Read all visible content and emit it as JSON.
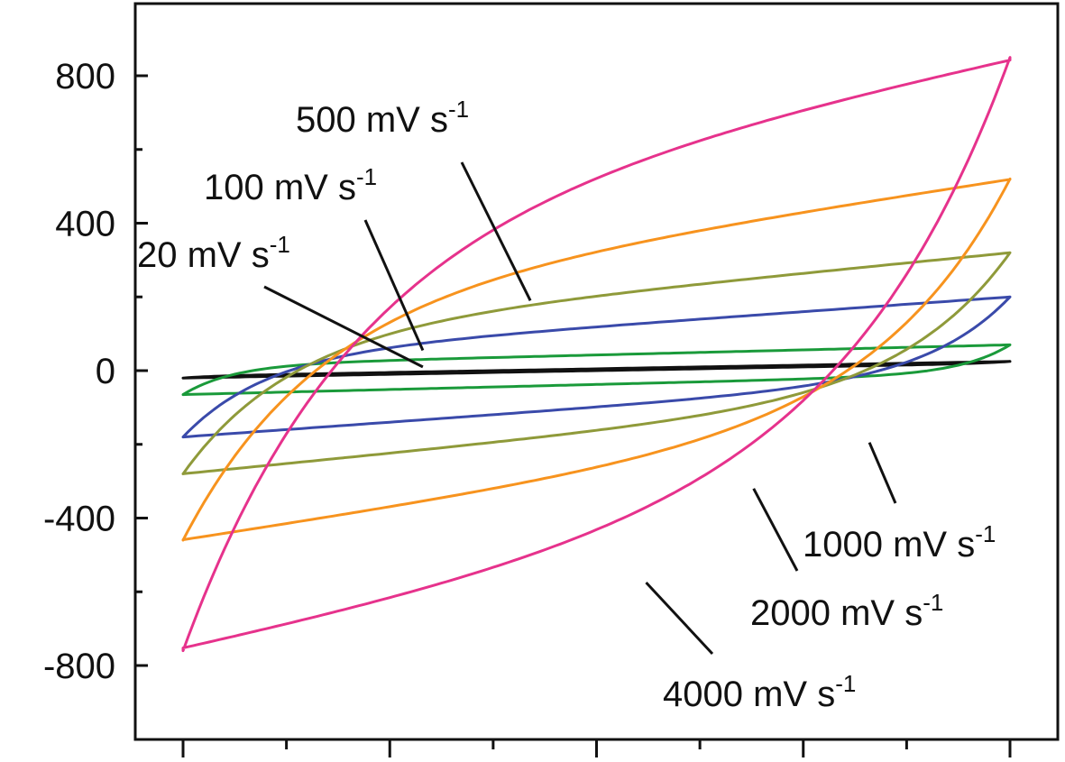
{
  "chart_data": {
    "type": "line",
    "title": "",
    "xlabel": "",
    "ylabel": "",
    "xlim": [
      0,
      1.0
    ],
    "ylim": [
      -1000,
      1000
    ],
    "y_ticks": [
      {
        "value": 800,
        "label": "800"
      },
      {
        "value": 400,
        "label": "400"
      },
      {
        "value": 0,
        "label": "0"
      },
      {
        "value": -400,
        "label": "-400"
      },
      {
        "value": -800,
        "label": "-800"
      }
    ],
    "y_minor_ticks": [
      600,
      200,
      -200,
      -600
    ],
    "x_ticks": [
      0,
      0.25,
      0.5,
      0.75,
      1.0
    ],
    "x_minor_ticks": [
      0.125,
      0.375,
      0.625,
      0.875
    ],
    "grid": false,
    "series": [
      {
        "name": "20 mV s-1",
        "color": "#111111",
        "loop": {
          "y_top_start": -15,
          "y_top_end": 25,
          "y_bottom_start": -20,
          "y_bottom_end": 20,
          "k": 100,
          "ramp": 0.04
        }
      },
      {
        "name": "100 mV s-1",
        "color": "#1a9a3a",
        "loop": {
          "y_top_start": 15,
          "y_top_end": 70,
          "y_bottom_start": -65,
          "y_bottom_end": -10,
          "k": 60,
          "ramp": 0.06
        }
      },
      {
        "name": "500 mV s-1",
        "color": "#3a4aaa",
        "loop": {
          "y_top_start": 40,
          "y_top_end": 200,
          "y_bottom_start": -180,
          "y_bottom_end": -20,
          "k": 35,
          "ramp": 0.1
        }
      },
      {
        "name": "1000 mV s-1",
        "color": "#8f9a3a",
        "loop": {
          "y_top_start": 100,
          "y_top_end": 320,
          "y_bottom_start": -280,
          "y_bottom_end": -60,
          "k": 20,
          "ramp": 0.13
        }
      },
      {
        "name": "2000 mV s-1",
        "color": "#f7931e",
        "loop": {
          "y_top_start": 180,
          "y_top_end": 520,
          "y_bottom_start": -460,
          "y_bottom_end": -120,
          "k": 12,
          "ramp": 0.16
        }
      },
      {
        "name": "4000 mV s-1",
        "color": "#e6328c",
        "loop": {
          "y_top_start": 380,
          "y_top_end": 850,
          "y_bottom_start": -760,
          "y_bottom_end": -290,
          "k": 6,
          "ramp": 0.2
        }
      }
    ],
    "annotations": [
      {
        "id": "20",
        "main": "20 mV s",
        "sup": "-1",
        "target": {
          "x": 0.29,
          "y": 10
        }
      },
      {
        "id": "100",
        "main": "100 mV s",
        "sup": "-1",
        "target": {
          "x": 0.29,
          "y": 55
        }
      },
      {
        "id": "500",
        "main": "500 mV s",
        "sup": "-1",
        "target": {
          "x": 0.42,
          "y": 190
        }
      },
      {
        "id": "1000",
        "main": "1000 mV s",
        "sup": "-1",
        "target": {
          "x": 0.83,
          "y": -195
        }
      },
      {
        "id": "2000",
        "main": "2000 mV s",
        "sup": "-1",
        "target": {
          "x": 0.69,
          "y": -320
        }
      },
      {
        "id": "4000",
        "main": "4000 mV s",
        "sup": "-1",
        "target": {
          "x": 0.56,
          "y": -575
        }
      }
    ]
  }
}
